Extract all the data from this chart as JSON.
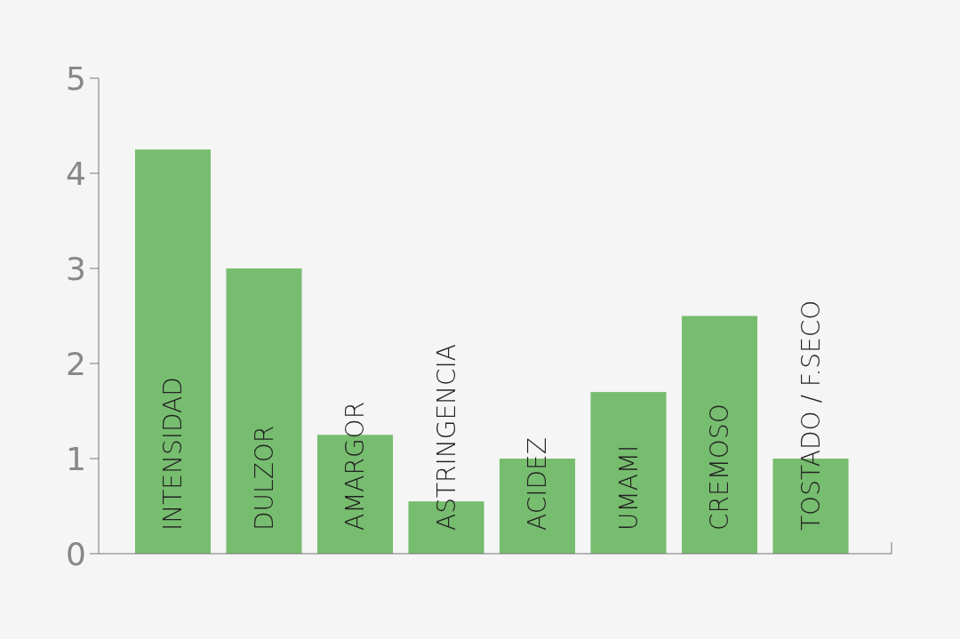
{
  "chart_data": {
    "type": "bar",
    "categories": [
      "INTENSIDAD",
      "DULZOR",
      "AMARGOR",
      "ASTRINGENCIA",
      "ACIDEZ",
      "UMAMI",
      "CREMOSO",
      "TOSTADO / F.SECO"
    ],
    "values": [
      4.25,
      3.0,
      1.25,
      0.55,
      1.0,
      1.7,
      2.5,
      1.0
    ],
    "color": "#77bd6f",
    "ylim": [
      0,
      5
    ],
    "yticks": [
      0,
      1,
      2,
      3,
      4,
      5
    ],
    "grid": false
  }
}
